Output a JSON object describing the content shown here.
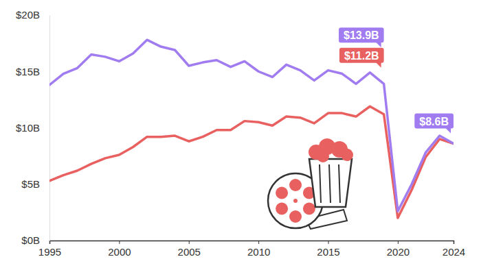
{
  "chart_data": {
    "type": "line",
    "x": [
      1995,
      1996,
      1997,
      1998,
      1999,
      2000,
      2001,
      2002,
      2003,
      2004,
      2005,
      2006,
      2007,
      2008,
      2009,
      2010,
      2011,
      2012,
      2013,
      2014,
      2015,
      2016,
      2017,
      2018,
      2019,
      2020,
      2021,
      2022,
      2023,
      2024
    ],
    "series": [
      {
        "color": "#a07cf0",
        "values": [
          13.8,
          14.8,
          15.3,
          16.5,
          16.3,
          15.9,
          16.6,
          17.8,
          17.2,
          16.9,
          15.5,
          15.8,
          16.0,
          15.4,
          15.9,
          15.0,
          14.5,
          15.6,
          15.1,
          14.2,
          15.1,
          14.8,
          13.9,
          14.9,
          13.9,
          2.6,
          5.0,
          7.8,
          9.3,
          8.6
        ]
      },
      {
        "color": "#e8605f",
        "values": [
          5.3,
          5.8,
          6.2,
          6.8,
          7.3,
          7.6,
          8.3,
          9.2,
          9.2,
          9.3,
          8.8,
          9.2,
          9.8,
          9.8,
          10.6,
          10.5,
          10.2,
          11.0,
          10.9,
          10.4,
          11.3,
          11.3,
          11.0,
          11.9,
          11.2,
          2.0,
          4.5,
          7.4,
          9.0,
          8.6
        ]
      }
    ],
    "xlim": [
      1995,
      2024
    ],
    "xticks": [
      1995,
      2000,
      2005,
      2010,
      2015,
      2020,
      2024
    ],
    "ylim": [
      0,
      20
    ],
    "yticks": [
      {
        "value": 0,
        "label": "$0B"
      },
      {
        "value": 5,
        "label": "$5B"
      },
      {
        "value": 10,
        "label": "$10B"
      },
      {
        "value": 15,
        "label": "$15B"
      },
      {
        "value": 20,
        "label": "$20B"
      }
    ],
    "grid": false,
    "annotations": [
      {
        "text": "$13.9B",
        "x": 2019,
        "y": 13.9,
        "color": "#a07cf0"
      },
      {
        "text": "$11.2B",
        "x": 2019,
        "y": 11.2,
        "color": "#e8605f"
      },
      {
        "text": "$8.6B",
        "x": 2024,
        "y": 8.6,
        "color": "#a07cf0"
      }
    ]
  }
}
